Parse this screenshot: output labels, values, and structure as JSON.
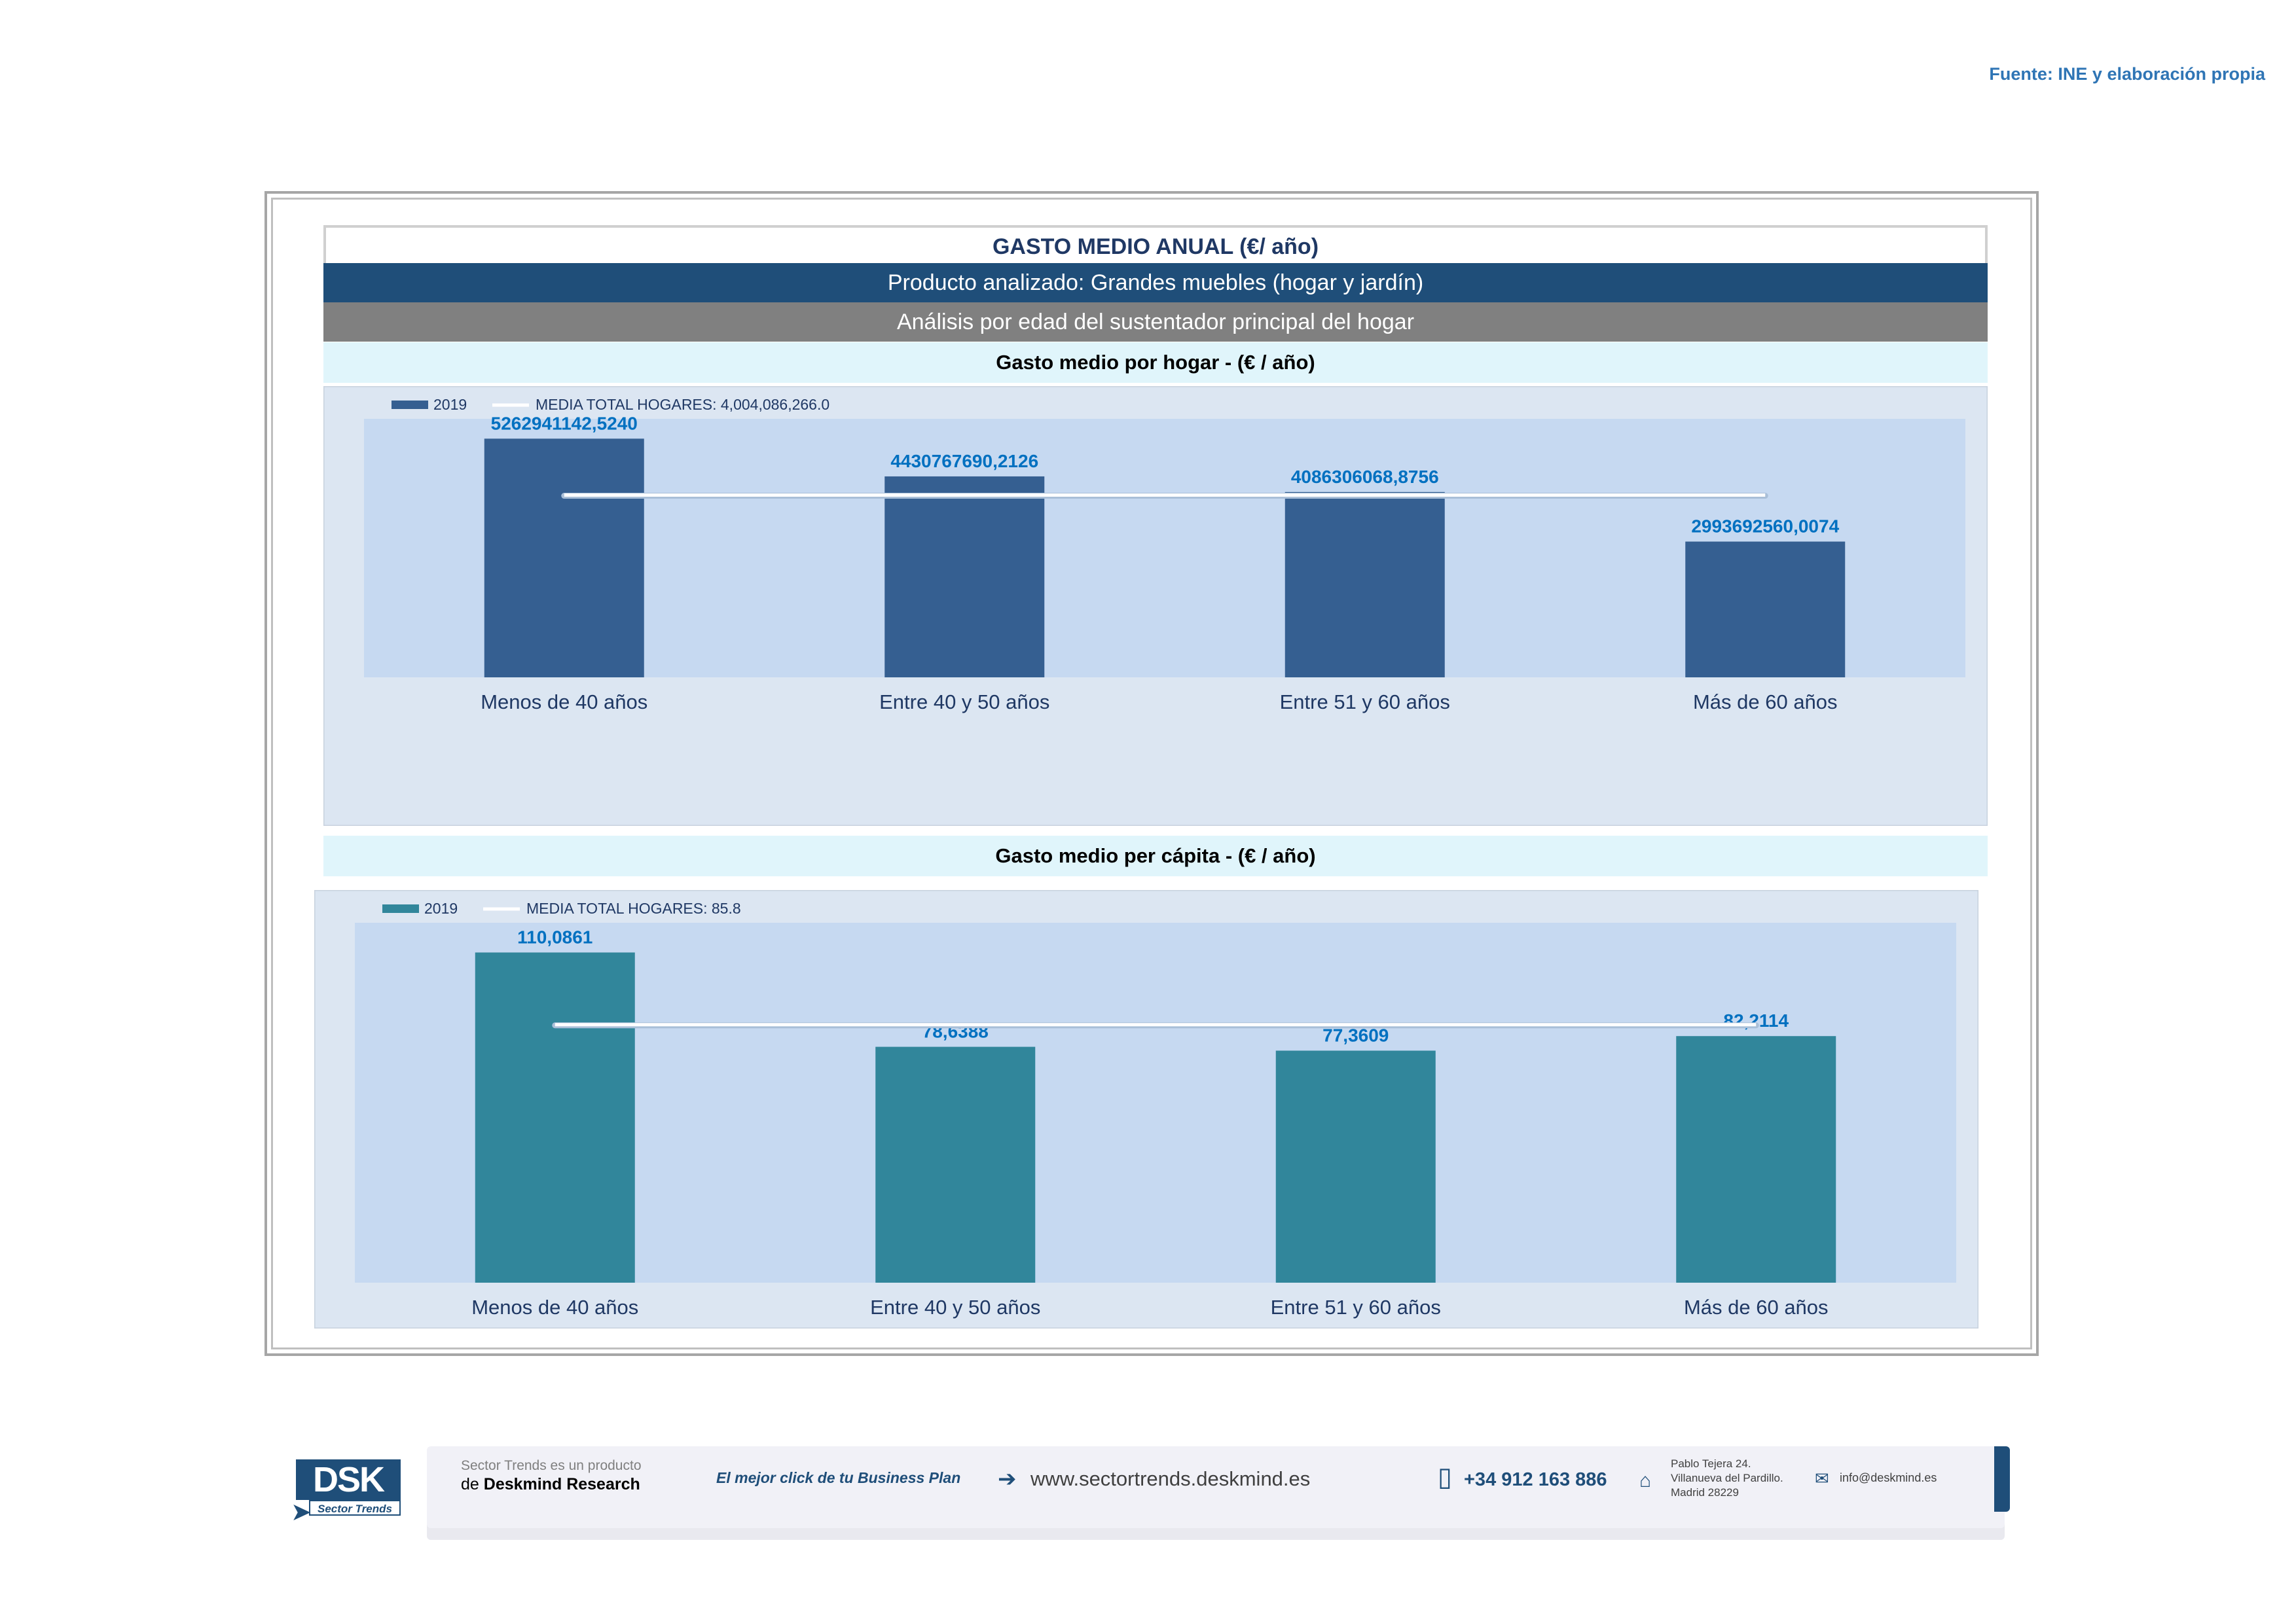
{
  "source": "Fuente: INE y elaboración propia",
  "header": {
    "title": "GASTO MEDIO ANUAL (€/ año)",
    "product": "Producto analizado: Grandes muebles (hogar y jardín)",
    "analysis": "Análisis por edad del sustentador principal del hogar"
  },
  "colors": {
    "hogar_bar": "#355f91",
    "capita_bar": "#31869b",
    "plot_bg": "#c6d9f1",
    "chart_bg": "#dce6f2",
    "label": "#0070c0",
    "avg_line": "#ffffff"
  },
  "chart_data": [
    {
      "type": "bar",
      "title": "Gasto medio por hogar -  (€ / año)",
      "categories": [
        "Menos de 40 años",
        "Entre 40 y 50 años",
        "Entre 51  y 60 años",
        "Más de 60 años"
      ],
      "series": [
        {
          "name": "2019",
          "values": [
            5262941142.524,
            4430767690.2126,
            4086306068.8756,
            2993692560.0074
          ],
          "labels": [
            "5262941142,5240",
            "4430767690,2126",
            "4086306068,8756",
            "2993692560,0074"
          ]
        }
      ],
      "average": {
        "name": "MEDIA TOTAL  HOGARES:",
        "value": 4004086266.0,
        "label": "4,004,086,266.0"
      },
      "ylim": [
        0,
        5700000000
      ],
      "legend": "top-left",
      "grid": false
    },
    {
      "type": "bar",
      "title": "Gasto medio per cápita -  (€ / año)",
      "categories": [
        "Menos de 40 años",
        "Entre 40 y 50 años",
        "Entre 51  y 60 años",
        "Más de 60 años"
      ],
      "series": [
        {
          "name": "2019",
          "values": [
            110.0861,
            78.6388,
            77.3609,
            82.2114
          ],
          "labels": [
            "110,0861",
            "78,6388",
            "77,3609",
            "82,2114"
          ]
        }
      ],
      "average": {
        "name": "MEDIA TOTAL  HOGARES:",
        "value": 85.8,
        "label": "85.8"
      },
      "ylim": [
        0,
        120
      ],
      "legend": "top-left",
      "grid": false
    }
  ],
  "footer": {
    "logo": "DSK",
    "logo_sub": "Sector Trends",
    "product_line1": "Sector Trends es un producto",
    "product_line2_prefix": "de",
    "product_line2_brand": "Deskmind Research",
    "slogan": "El mejor click de tu Business Plan",
    "web": "www.sectortrends.deskmind.es",
    "phone": "+34 912 163 886",
    "address_line1": "Pablo Tejera 24.",
    "address_line2": "Villanueva del Pardillo.",
    "address_line3": "Madrid 28229",
    "email": "info@deskmind.es",
    "icons": [
      "arrow-icon",
      "phone-icon",
      "home-icon",
      "mail-icon"
    ]
  }
}
